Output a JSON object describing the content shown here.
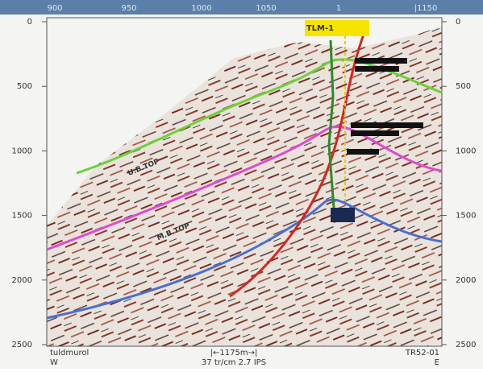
{
  "top_axis": [
    "900",
    "950",
    "1000",
    "1050",
    "1",
    "|1150"
  ],
  "left_axis": [
    "0",
    "500",
    "1000",
    "1500",
    "2000",
    "2500"
  ],
  "right_axis": [
    "0",
    "500",
    "1000",
    "1500",
    "2000",
    "2500"
  ],
  "well": "TLM-1",
  "horizons": [
    "U.B.TOP",
    "M.B.TOP"
  ],
  "footer": {
    "line": "tuldmurol",
    "west": "W",
    "scale": "|←1175m→|",
    "display": "37 tr/cm 2.7 IPS",
    "survey": "TR52-01",
    "east": "E"
  }
}
